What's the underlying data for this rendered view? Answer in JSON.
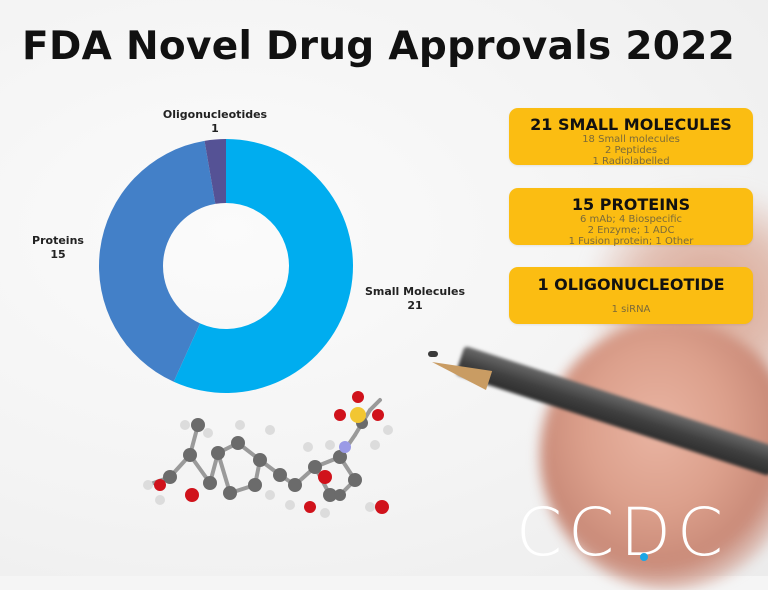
{
  "title": "FDA Novel Drug Approvals 2022",
  "chart_data": {
    "type": "pie",
    "subtype": "donut",
    "title": "FDA Novel Drug Approvals 2022",
    "categories": [
      "Small Molecules",
      "Proteins",
      "Oligonucleotides"
    ],
    "values": [
      21,
      15,
      1
    ],
    "colors": [
      "#00adef",
      "#4380c8",
      "#555295"
    ],
    "labels": [
      {
        "name": "Small Molecules",
        "value": "21"
      },
      {
        "name": "Proteins",
        "value": "15"
      },
      {
        "name": "Oligonucleotides",
        "value": "1"
      }
    ],
    "legend": "none (data labels outside slices)"
  },
  "cards": [
    {
      "heading": "21 SMALL MOLECULES",
      "lines": [
        "18 Small molecules",
        "2 Peptides",
        "1 Radiolabelled"
      ]
    },
    {
      "heading": "15 PROTEINS",
      "lines": [
        "6 mAb; 4 Biospecific",
        "2 Enzyme; 1 ADC",
        "1 Fusion protein; 1 Other"
      ]
    },
    {
      "heading": "1 OLIGONUCLEOTIDE",
      "lines": [
        "1 siRNA"
      ]
    }
  ],
  "logo": {
    "text": "CCDC",
    "accent_color": "#1aa6e6"
  },
  "colors": {
    "card_bg": "#fbbd12",
    "title": "#111111"
  }
}
